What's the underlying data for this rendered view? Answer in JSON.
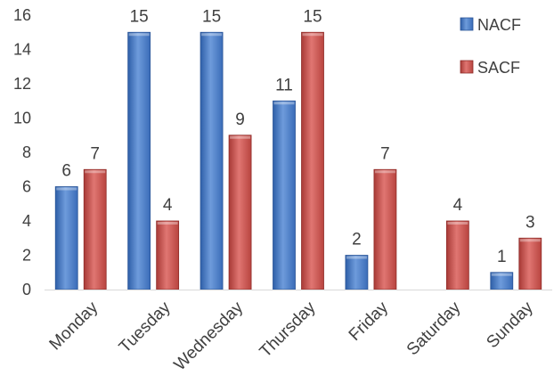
{
  "chart_data": {
    "type": "bar",
    "title": "",
    "xlabel": "",
    "ylabel": "",
    "categories": [
      "Monday",
      "Tuesday",
      "Wednesday",
      "Thursday",
      "Friday",
      "Saturday",
      "Sunday"
    ],
    "series": [
      {
        "name": "NACF",
        "values": [
          6,
          15,
          15,
          11,
          2,
          null,
          1
        ],
        "color": "#4472C4"
      },
      {
        "name": "SACF",
        "values": [
          7,
          4,
          9,
          15,
          7,
          4,
          3
        ],
        "color": "#C0504D"
      }
    ],
    "ylim": [
      0,
      16
    ],
    "yticks": [
      0,
      2,
      4,
      6,
      8,
      10,
      12,
      14,
      16
    ],
    "grid": false,
    "legend": "top-right",
    "data_labels": true
  }
}
